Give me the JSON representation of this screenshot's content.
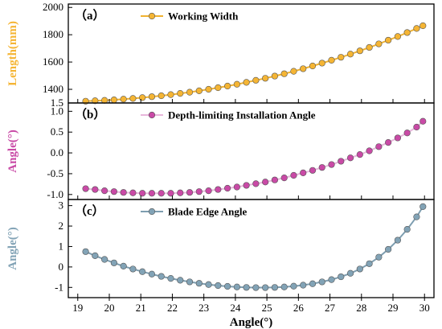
{
  "chart_data": [
    {
      "type": "line",
      "panel_label": "（a）",
      "legend_label": "Working Width",
      "ylabel": "Length(mm)",
      "color": "#f5b534",
      "line_color": "#f0b230",
      "ylim": [
        1300,
        2025
      ],
      "yticks": [
        1400,
        1600,
        1800,
        2000
      ],
      "yticklabels": [
        "1400",
        "1600",
        "1800",
        "2000"
      ],
      "x": [
        19.25,
        19.55,
        19.85,
        20.15,
        20.45,
        20.75,
        21.05,
        21.35,
        21.65,
        21.95,
        22.25,
        22.55,
        22.85,
        23.15,
        23.45,
        23.75,
        24.05,
        24.35,
        24.65,
        24.95,
        25.25,
        25.55,
        25.85,
        26.15,
        26.45,
        26.75,
        27.05,
        27.35,
        27.65,
        27.95,
        28.25,
        28.55,
        28.85,
        29.15,
        29.45,
        29.75,
        29.95
      ],
      "y": [
        1313,
        1316,
        1319,
        1323,
        1328,
        1333,
        1339,
        1346,
        1353,
        1361,
        1370,
        1379,
        1389,
        1400,
        1412,
        1424,
        1437,
        1451,
        1466,
        1481,
        1497,
        1514,
        1532,
        1551,
        1571,
        1592,
        1613,
        1635,
        1658,
        1682,
        1707,
        1733,
        1760,
        1787,
        1816,
        1846,
        1866
      ]
    },
    {
      "type": "line",
      "panel_label": "（b）",
      "legend_label": "Depth-limiting Installation Angle",
      "ylabel": "Angle(°)",
      "color": "#c94aa6",
      "line_color": "#e8b7dc",
      "ylim": [
        -1.12,
        1.2
      ],
      "yticks": [
        -1.0,
        -0.5,
        0.0,
        0.5,
        1.0
      ],
      "yticklabels": [
        "-1.0",
        "-0.5",
        "0.0",
        "0.5",
        "1.0"
      ],
      "x": [
        19.25,
        19.55,
        19.85,
        20.15,
        20.45,
        20.75,
        21.05,
        21.35,
        21.65,
        21.95,
        22.25,
        22.55,
        22.85,
        23.15,
        23.45,
        23.75,
        24.05,
        24.35,
        24.65,
        24.95,
        25.25,
        25.55,
        25.85,
        26.15,
        26.45,
        26.75,
        27.05,
        27.35,
        27.65,
        27.95,
        28.25,
        28.55,
        28.85,
        29.15,
        29.45,
        29.75,
        29.95
      ],
      "y": [
        -0.86,
        -0.88,
        -0.91,
        -0.93,
        -0.95,
        -0.96,
        -0.97,
        -0.97,
        -0.97,
        -0.97,
        -0.96,
        -0.95,
        -0.93,
        -0.91,
        -0.88,
        -0.85,
        -0.82,
        -0.78,
        -0.74,
        -0.7,
        -0.65,
        -0.6,
        -0.54,
        -0.48,
        -0.42,
        -0.35,
        -0.28,
        -0.2,
        -0.12,
        -0.04,
        0.05,
        0.15,
        0.25,
        0.36,
        0.48,
        0.62,
        0.76
      ]
    },
    {
      "type": "line",
      "panel_label": "（c）",
      "legend_label": "Blade Edge Angle",
      "ylabel": "Angle(°)",
      "color": "#82a3b6",
      "line_color": "#7e9eb0",
      "ylim": [
        -1.5,
        3.3
      ],
      "yticks": [
        -1,
        0,
        1,
        2,
        3
      ],
      "yticklabels": [
        "-1",
        "0",
        "1",
        "2",
        "3"
      ],
      "x": [
        19.25,
        19.55,
        19.85,
        20.15,
        20.45,
        20.75,
        21.05,
        21.35,
        21.65,
        21.95,
        22.25,
        22.55,
        22.85,
        23.15,
        23.45,
        23.75,
        24.05,
        24.35,
        24.65,
        24.95,
        25.25,
        25.55,
        25.85,
        26.15,
        26.45,
        26.75,
        27.05,
        27.35,
        27.65,
        27.95,
        28.25,
        28.55,
        28.85,
        29.15,
        29.45,
        29.75,
        29.95
      ],
      "y": [
        0.75,
        0.55,
        0.37,
        0.2,
        0.04,
        -0.1,
        -0.23,
        -0.35,
        -0.46,
        -0.56,
        -0.65,
        -0.73,
        -0.8,
        -0.86,
        -0.91,
        -0.95,
        -0.98,
        -1.0,
        -1.01,
        -1.01,
        -1.0,
        -0.98,
        -0.94,
        -0.89,
        -0.82,
        -0.73,
        -0.62,
        -0.48,
        -0.31,
        -0.1,
        0.16,
        0.48,
        0.86,
        1.31,
        1.84,
        2.45,
        2.95
      ]
    }
  ],
  "x_axis": {
    "label": "Angle(°)",
    "xlim": [
      18.7,
      30.3
    ],
    "ticks": [
      19,
      20,
      21,
      22,
      23,
      24,
      25,
      26,
      27,
      28,
      29,
      30
    ],
    "ticklabels": [
      "19",
      "20",
      "21",
      "22",
      "23",
      "24",
      "25",
      "26",
      "27",
      "28",
      "29",
      "30"
    ]
  },
  "extra_tick": "1.5"
}
